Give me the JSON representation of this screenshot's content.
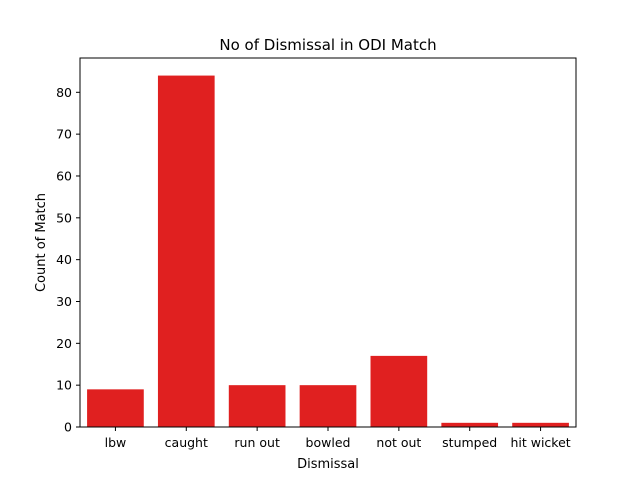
{
  "chart_data": {
    "type": "bar",
    "title": "No of Dismissal in ODI Match",
    "xlabel": "Dismissal",
    "ylabel": "Count of Match",
    "categories": [
      "lbw",
      "caught",
      "run out",
      "bowled",
      "not out",
      "stumped",
      "hit wicket"
    ],
    "values": [
      9,
      84,
      10,
      10,
      17,
      1,
      1
    ],
    "ylim": [
      0,
      88.2
    ],
    "yticks": [
      0,
      10,
      20,
      30,
      40,
      50,
      60,
      70,
      80
    ],
    "bar_color": "#e02020",
    "grid": false,
    "legend": "none"
  }
}
